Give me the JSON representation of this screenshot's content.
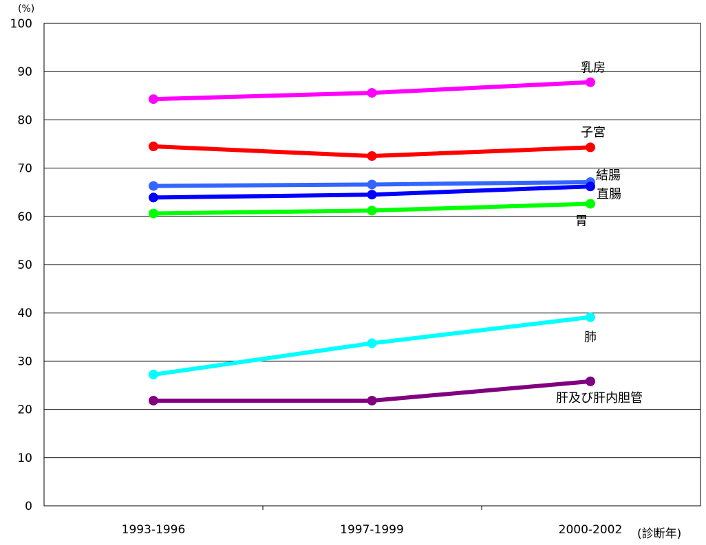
{
  "chart_data": {
    "type": "line",
    "title": "",
    "ylabel": "(%)",
    "xlabel": "(診断年)",
    "categories": [
      "1993-1996",
      "1997-1999",
      "2000-2002"
    ],
    "ylim": [
      0,
      100
    ],
    "yticks": [
      0,
      10,
      20,
      30,
      40,
      50,
      60,
      70,
      80,
      90,
      100
    ],
    "grid": true,
    "series": [
      {
        "name": "乳房",
        "values": [
          84.3,
          85.6,
          87.8
        ],
        "color": "#ff00ff"
      },
      {
        "name": "子宮",
        "values": [
          74.5,
          72.5,
          74.3
        ],
        "color": "#ff0000"
      },
      {
        "name": "結腸",
        "values": [
          66.3,
          66.6,
          67.1
        ],
        "color": "#3366ff"
      },
      {
        "name": "直腸",
        "values": [
          63.9,
          64.5,
          66.2
        ],
        "color": "#0000ff"
      },
      {
        "name": "胃",
        "values": [
          60.6,
          61.2,
          62.6
        ],
        "color": "#00ff00"
      },
      {
        "name": "肺",
        "values": [
          27.2,
          33.7,
          39.1
        ],
        "color": "#00ffff"
      },
      {
        "name": "肝及び肝内胆管",
        "values": [
          21.8,
          21.8,
          25.8
        ],
        "color": "#800080"
      }
    ]
  }
}
